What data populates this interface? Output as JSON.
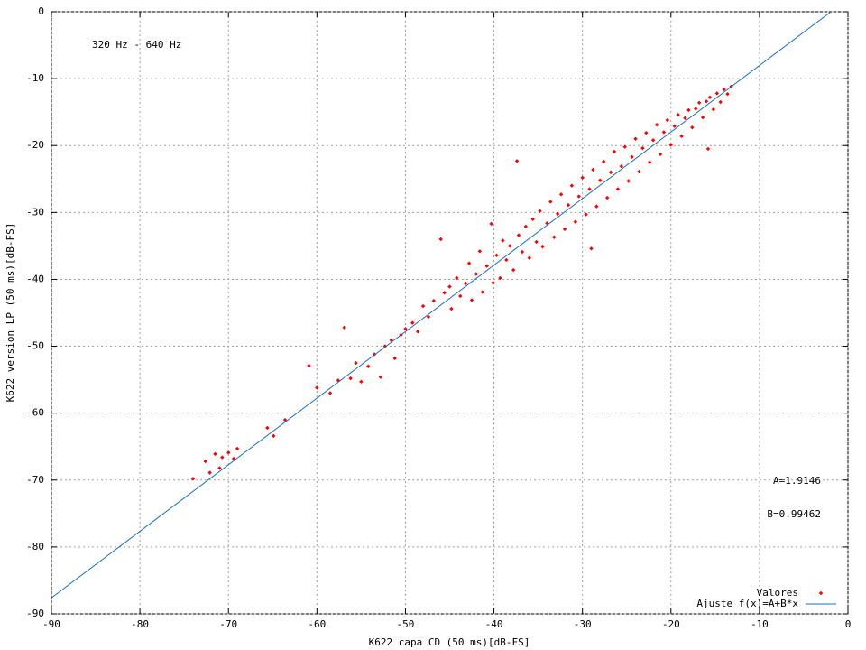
{
  "chart_data": {
    "type": "scatter",
    "xlabel": "K622 capa CD (50 ms)[dB-FS]",
    "ylabel": "K622 version LP (50 ms)[dB-FS]",
    "annotations": [
      "320 Hz - 640 Hz",
      "A=1.9146",
      "B=0.99462"
    ],
    "xlim": [
      -90,
      0
    ],
    "ylim": [
      -90,
      0
    ],
    "xticks": [
      -90,
      -80,
      -70,
      -60,
      -50,
      -40,
      -30,
      -20,
      -10,
      0
    ],
    "yticks": [
      -90,
      -80,
      -70,
      -60,
      -50,
      -40,
      -30,
      -20,
      -10,
      0
    ],
    "grid": true,
    "legend": "bottom-right",
    "series": [
      {
        "name": "Valores",
        "type": "scatter",
        "color": "#ff0000",
        "x": [
          -74,
          -72.6,
          -72.1,
          -71.5,
          -71.0,
          -70.7,
          -70.0,
          -69.4,
          -69.0,
          -65.6,
          -64.9,
          -63.6,
          -60.9,
          -60.0,
          -58.5,
          -57.6,
          -56.9,
          -56.2,
          -55.6,
          -55.0,
          -54.2,
          -53.5,
          -52.8,
          -52.3,
          -51.6,
          -51.2,
          -50.5,
          -50.0,
          -49.2,
          -48.6,
          -48.0,
          -47.4,
          -46.8,
          -46.0,
          -45.6,
          -45.0,
          -44.8,
          -44.2,
          -43.8,
          -43.2,
          -42.8,
          -42.5,
          -42.0,
          -41.6,
          -41.3,
          -40.8,
          -40.3,
          -40.1,
          -39.7,
          -39.3,
          -39.0,
          -38.6,
          -38.2,
          -37.8,
          -37.4,
          -37.2,
          -36.8,
          -36.4,
          -36.0,
          -35.6,
          -35.2,
          -34.8,
          -34.5,
          -34.0,
          -33.6,
          -33.2,
          -32.8,
          -32.4,
          -32.0,
          -31.6,
          -31.2,
          -30.8,
          -30.4,
          -30.0,
          -29.6,
          -29.0,
          -29.2,
          -28.8,
          -28.4,
          -28.0,
          -27.6,
          -27.2,
          -26.8,
          -26.4,
          -26.0,
          -25.6,
          -25.2,
          -24.8,
          -24.4,
          -24.0,
          -23.6,
          -23.2,
          -22.8,
          -22.4,
          -22.0,
          -21.6,
          -21.2,
          -20.8,
          -20.4,
          -20.0,
          -19.6,
          -19.2,
          -18.8,
          -18.4,
          -18.0,
          -17.6,
          -17.2,
          -16.8,
          -16.4,
          -16.0,
          -15.8,
          -15.6,
          -15.2,
          -14.8,
          -14.4,
          -14.0,
          -13.6,
          -13.2
        ],
        "values": [
          -69.8,
          -67.2,
          -68.9,
          -66.1,
          -68.2,
          -66.6,
          -65.9,
          -66.8,
          -65.3,
          -62.2,
          -63.4,
          -61.0,
          -52.9,
          -56.2,
          -57.0,
          -55.1,
          -47.2,
          -54.8,
          -52.5,
          -55.3,
          -53.0,
          -51.2,
          -54.6,
          -50.0,
          -49.1,
          -51.8,
          -48.3,
          -47.4,
          -46.5,
          -47.8,
          -44.0,
          -45.6,
          -43.2,
          -34.0,
          -42.0,
          -41.1,
          -44.4,
          -39.8,
          -42.5,
          -40.6,
          -37.6,
          -43.1,
          -39.2,
          -35.8,
          -41.9,
          -38.0,
          -31.7,
          -40.5,
          -36.4,
          -39.8,
          -34.2,
          -37.1,
          -35.0,
          -38.6,
          -22.3,
          -33.4,
          -35.9,
          -32.1,
          -36.8,
          -31.0,
          -34.4,
          -29.8,
          -35.1,
          -31.6,
          -28.4,
          -33.7,
          -30.2,
          -27.3,
          -32.5,
          -28.9,
          -26.0,
          -31.4,
          -27.6,
          -24.8,
          -30.3,
          -35.4,
          -26.5,
          -23.6,
          -29.1,
          -25.2,
          -22.4,
          -27.8,
          -24.0,
          -20.9,
          -26.5,
          -23.1,
          -20.2,
          -25.3,
          -21.7,
          -19.0,
          -23.9,
          -20.4,
          -18.1,
          -22.5,
          -19.2,
          -16.9,
          -21.3,
          -18.0,
          -16.2,
          -19.9,
          -17.1,
          -15.4,
          -18.6,
          -15.9,
          -14.7,
          -17.3,
          -14.5,
          -13.6,
          -15.8,
          -13.4,
          -20.5,
          -12.8,
          -14.6,
          -12.2,
          -13.5,
          -11.6,
          -12.3,
          -11.2
        ]
      },
      {
        "name": "Ajuste f(x)=A+B*x",
        "type": "line",
        "color": "#1a6fc0",
        "x": [
          -90,
          -1.925
        ],
        "values": [
          -87.6,
          0
        ]
      }
    ]
  }
}
